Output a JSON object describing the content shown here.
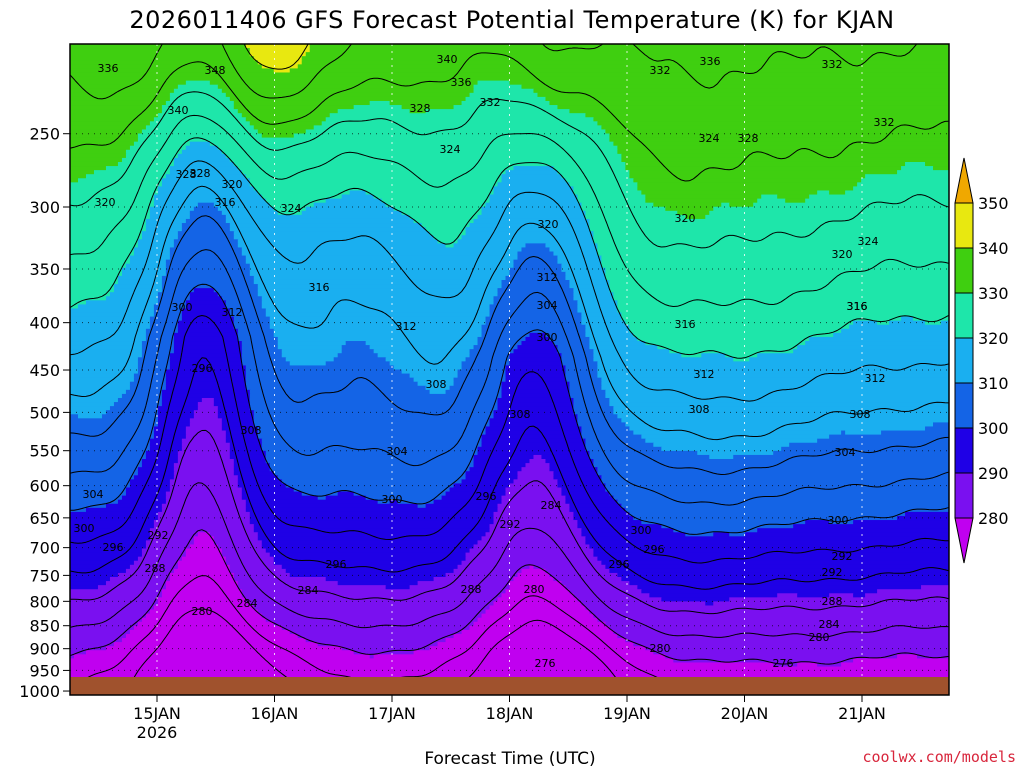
{
  "chart_data": {
    "type": "heatmap",
    "title": "2026011406 GFS Forecast Potential Temperature (K) for KJAN",
    "xlabel": "Forecast Time (UTC)",
    "ylabel": "",
    "y_scale": "log-pressure",
    "y_ticks": [
      250,
      300,
      350,
      400,
      450,
      500,
      550,
      600,
      650,
      700,
      750,
      800,
      850,
      900,
      950,
      1000
    ],
    "ylim": [
      200,
      1000
    ],
    "x_ticks": [
      "15JAN",
      "16JAN",
      "17JAN",
      "18JAN",
      "19JAN",
      "20JAN",
      "21JAN"
    ],
    "x_tick_sublabel": "2026",
    "colorbar": {
      "levels": [
        280,
        290,
        300,
        310,
        320,
        330,
        340,
        350
      ],
      "colors": [
        "#c000f0",
        "#7a10f0",
        "#1f00e6",
        "#1464e6",
        "#1aaff0",
        "#1ee6aa",
        "#3fcf10",
        "#e8e810",
        "#f0a800"
      ]
    },
    "grid": true,
    "contour_interval": 4,
    "contour_labels": [
      {
        "v": "336"
      },
      {
        "v": "348"
      },
      {
        "v": "340"
      },
      {
        "v": "340"
      },
      {
        "v": "336"
      },
      {
        "v": "332"
      },
      {
        "v": "332"
      },
      {
        "v": "336"
      },
      {
        "v": "332"
      },
      {
        "v": "328"
      },
      {
        "v": "328"
      },
      {
        "v": "324"
      },
      {
        "v": "324"
      },
      {
        "v": "328"
      },
      {
        "v": "332"
      },
      {
        "v": "320"
      },
      {
        "v": "328"
      },
      {
        "v": "320"
      },
      {
        "v": "316"
      },
      {
        "v": "324"
      },
      {
        "v": "316"
      },
      {
        "v": "320"
      },
      {
        "v": "320"
      },
      {
        "v": "324"
      },
      {
        "v": "320"
      },
      {
        "v": "316"
      },
      {
        "v": "312"
      },
      {
        "v": "300"
      },
      {
        "v": "312"
      },
      {
        "v": "312"
      },
      {
        "v": "308"
      },
      {
        "v": "316"
      },
      {
        "v": "316"
      },
      {
        "v": "296"
      },
      {
        "v": "304"
      },
      {
        "v": "308"
      },
      {
        "v": "312"
      },
      {
        "v": "312"
      },
      {
        "v": "308"
      },
      {
        "v": "308"
      },
      {
        "v": "308"
      },
      {
        "v": "300"
      },
      {
        "v": "304"
      },
      {
        "v": "304"
      },
      {
        "v": "304"
      },
      {
        "v": "300"
      },
      {
        "v": "296"
      },
      {
        "v": "284"
      },
      {
        "v": "300"
      },
      {
        "v": "292"
      },
      {
        "v": "296"
      },
      {
        "v": "300"
      },
      {
        "v": "300"
      },
      {
        "v": "292"
      },
      {
        "v": "296"
      },
      {
        "v": "296"
      },
      {
        "v": "292"
      },
      {
        "v": "296"
      },
      {
        "v": "292"
      },
      {
        "v": "288"
      },
      {
        "v": "288"
      },
      {
        "v": "280"
      },
      {
        "v": "284"
      },
      {
        "v": "284"
      },
      {
        "v": "280"
      },
      {
        "v": "288"
      },
      {
        "v": "280"
      },
      {
        "v": "276"
      },
      {
        "v": "280"
      },
      {
        "v": "276"
      },
      {
        "v": "284"
      }
    ]
  },
  "credit": "coolwx.com/models"
}
